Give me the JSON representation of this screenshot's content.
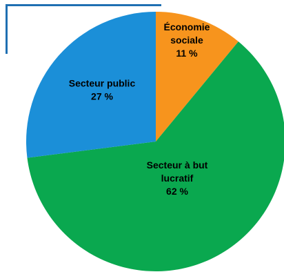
{
  "chart_data": {
    "type": "pie",
    "start_angle_deg": 0,
    "direction": "clockwise",
    "slices": [
      {
        "label_lines": [
          "Économie",
          "sociale"
        ],
        "value_text": "11 %",
        "value": 11,
        "color": "#f7941d"
      },
      {
        "label_lines": [
          "Secteur à but",
          "lucratif"
        ],
        "value_text": "62 %",
        "value": 62,
        "color": "#0aa84f"
      },
      {
        "label_lines": [
          "Secteur public"
        ],
        "value_text": "27 %",
        "value": 27,
        "color": "#1b8fd8"
      }
    ]
  },
  "colors": {
    "frame": "#1f6fb2"
  }
}
